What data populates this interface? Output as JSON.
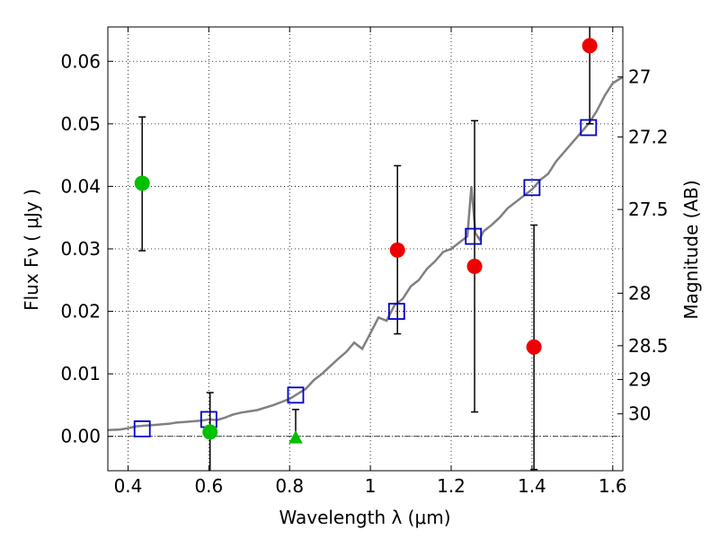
{
  "chart_data": {
    "type": "scatter",
    "xlabel": "Wavelength  λ (μm)",
    "ylabel": "Flux  Fν  ( μJy )",
    "y2label": "Magnitude (AB)",
    "xlim": [
      0.35,
      1.625
    ],
    "ylim": [
      -0.0055,
      0.0655
    ],
    "x_ticks": [
      0.4,
      0.6,
      0.8,
      1.0,
      1.2,
      1.4,
      1.6
    ],
    "x_tick_labels": [
      "0.4",
      "0.6",
      "0.8",
      "1",
      "1.2",
      "1.4",
      "1.6"
    ],
    "y_ticks": [
      0.0,
      0.01,
      0.02,
      0.03,
      0.04,
      0.05,
      0.06
    ],
    "y_tick_labels": [
      "0.00",
      "0.01",
      "0.02",
      "0.03",
      "0.04",
      "0.05",
      "0.06"
    ],
    "right_axis_ticks": [
      {
        "label": "27",
        "flux": 0.0575
      },
      {
        "label": "27.2",
        "flux": 0.0479
      },
      {
        "label": "27.5",
        "flux": 0.0363
      },
      {
        "label": "28",
        "flux": 0.0229
      },
      {
        "label": "28.5",
        "flux": 0.0145
      },
      {
        "label": "29",
        "flux": 0.0091
      },
      {
        "label": "30",
        "flux": 0.0036
      }
    ],
    "grid": true,
    "zero_line": true,
    "model_spectrum": {
      "color": "#808080",
      "x": [
        0.35,
        0.38,
        0.4,
        0.42,
        0.44,
        0.46,
        0.48,
        0.5,
        0.52,
        0.54,
        0.56,
        0.58,
        0.6,
        0.62,
        0.64,
        0.66,
        0.68,
        0.7,
        0.72,
        0.74,
        0.76,
        0.78,
        0.8,
        0.82,
        0.84,
        0.86,
        0.88,
        0.9,
        0.92,
        0.94,
        0.96,
        0.98,
        1.0,
        1.02,
        1.04,
        1.06,
        1.08,
        1.1,
        1.12,
        1.14,
        1.16,
        1.18,
        1.2,
        1.22,
        1.24,
        1.25,
        1.26,
        1.27,
        1.28,
        1.3,
        1.32,
        1.34,
        1.36,
        1.38,
        1.4,
        1.42,
        1.44,
        1.46,
        1.48,
        1.5,
        1.52,
        1.54,
        1.56,
        1.58,
        1.6,
        1.625
      ],
      "y": [
        0.001,
        0.0011,
        0.0013,
        0.0016,
        0.0017,
        0.0018,
        0.0019,
        0.002,
        0.0022,
        0.0023,
        0.0024,
        0.0025,
        0.0027,
        0.0026,
        0.003,
        0.0035,
        0.0038,
        0.004,
        0.0042,
        0.0046,
        0.005,
        0.0055,
        0.006,
        0.0068,
        0.0076,
        0.009,
        0.01,
        0.0112,
        0.0124,
        0.0135,
        0.015,
        0.014,
        0.0165,
        0.019,
        0.0185,
        0.021,
        0.022,
        0.024,
        0.025,
        0.0268,
        0.028,
        0.0295,
        0.03,
        0.031,
        0.032,
        0.04,
        0.0325,
        0.0315,
        0.0328,
        0.0338,
        0.035,
        0.0365,
        0.0375,
        0.0385,
        0.0395,
        0.041,
        0.042,
        0.044,
        0.0455,
        0.047,
        0.0485,
        0.05,
        0.052,
        0.0545,
        0.0565,
        0.0575
      ]
    },
    "model_photometry": {
      "marker": "open-square",
      "color": "#0000cc",
      "points": [
        {
          "x": 0.435,
          "y": 0.0012
        },
        {
          "x": 0.6,
          "y": 0.0027
        },
        {
          "x": 0.815,
          "y": 0.0066
        },
        {
          "x": 1.065,
          "y": 0.02
        },
        {
          "x": 1.255,
          "y": 0.032
        },
        {
          "x": 1.4,
          "y": 0.0398
        },
        {
          "x": 1.54,
          "y": 0.0494
        }
      ]
    },
    "observed": [
      {
        "x": 0.435,
        "y": 0.0405,
        "err_low": 0.0297,
        "err_high": 0.0511,
        "marker": "circle",
        "color": "#00c000"
      },
      {
        "x": 0.603,
        "y": 0.0007,
        "err_low": -0.0055,
        "err_high": 0.007,
        "marker": "circle",
        "color": "#00c000"
      },
      {
        "x": 0.815,
        "y": -0.0002,
        "err_low": -0.0005,
        "err_high": 0.0043,
        "marker": "triangle",
        "color": "#00c000"
      },
      {
        "x": 1.067,
        "y": 0.0298,
        "err_low": 0.0164,
        "err_high": 0.0433,
        "marker": "circle",
        "color": "#ee0000"
      },
      {
        "x": 1.258,
        "y": 0.0272,
        "err_low": 0.0039,
        "err_high": 0.0505,
        "marker": "circle",
        "color": "#ee0000"
      },
      {
        "x": 1.405,
        "y": 0.0143,
        "err_low": -0.0053,
        "err_high": 0.0338,
        "marker": "circle",
        "color": "#ee0000"
      },
      {
        "x": 1.543,
        "y": 0.0625,
        "err_low": 0.05,
        "err_high": 0.0655,
        "marker": "circle",
        "color": "#ee0000"
      }
    ]
  }
}
